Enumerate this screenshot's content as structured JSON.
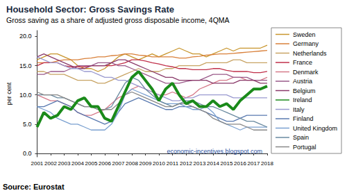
{
  "chart_data": {
    "type": "line",
    "title": "Household Sector: Gross Savings Rate",
    "subtitle": "Gross saving as a share of adjusted gross disposable income, 4QMA",
    "ylabel": "per cent",
    "source": "Source: Eurostat",
    "annotations": [
      {
        "text": "economic-incentives.blogspot.com"
      }
    ],
    "categories": [
      "2001",
      null,
      "2002",
      null,
      "2003",
      null,
      "2004",
      null,
      "2005",
      null,
      "2006",
      null,
      "2007",
      null,
      "2008",
      null,
      "2009",
      null,
      "2010",
      null,
      "2011",
      null,
      "2012",
      null,
      "2013",
      null,
      "2014",
      null,
      "2015",
      null,
      "2016",
      null,
      "2017",
      null,
      "2018"
    ],
    "ylim": [
      -0.6,
      21
    ],
    "yticks": [
      {
        "value": 0,
        "label": "0.0"
      },
      {
        "value": 5,
        "label": "5.0"
      },
      {
        "value": 10,
        "label": "10.0"
      },
      {
        "value": 15,
        "label": "15.0"
      },
      {
        "value": 20,
        "label": "20.0"
      }
    ],
    "grid": false,
    "legend": "right",
    "series": [
      {
        "name": "Sweden",
        "color": "#c8952c",
        "line_style": "solid",
        "values": [
          16,
          16.5,
          17,
          17,
          16.5,
          16,
          15,
          14.5,
          14.5,
          14,
          14.5,
          15.5,
          16.5,
          17,
          16.5,
          16,
          16.5,
          17,
          16.5,
          17,
          17.5,
          18,
          17.5,
          17,
          17,
          16.5,
          17,
          17.5,
          18,
          17.5,
          18,
          18,
          18,
          18,
          18.5
        ]
      },
      {
        "name": "Germany",
        "color": "#d9803a",
        "line_style": "solid",
        "values": [
          15.5,
          15.5,
          15.5,
          15.8,
          16,
          16,
          16,
          16.2,
          16.3,
          16.5,
          16.5,
          16.7,
          16.8,
          17,
          17,
          16.8,
          16.7,
          16.5,
          16.5,
          16.5,
          16.5,
          16.3,
          16.3,
          16.5,
          16.6,
          16.8,
          16.9,
          17,
          17,
          17.1,
          17.2,
          17.3,
          17.4,
          17.5,
          17.6
        ]
      },
      {
        "name": "Netherlands",
        "color": "#c8a464",
        "line_style": "solid",
        "values": [
          14,
          14,
          13.5,
          13.5,
          13.5,
          13,
          12.5,
          12.5,
          12.5,
          12,
          12,
          12.5,
          13,
          13.5,
          14,
          14.5,
          14,
          14,
          14,
          14.5,
          14.5,
          15,
          15,
          15,
          15,
          15.5,
          15.5,
          15.5,
          15.5,
          16,
          16,
          15.5,
          15.5,
          15.5,
          15.5
        ]
      },
      {
        "name": "France",
        "color": "#c0304a",
        "line_style": "solid",
        "values": [
          15,
          15.5,
          15.5,
          15.5,
          15,
          14.8,
          14.8,
          14.8,
          15,
          15,
          15,
          15,
          15.2,
          15.5,
          16,
          16,
          15.8,
          15.5,
          15.3,
          15,
          14.8,
          14.5,
          14.5,
          14.3,
          14.3,
          14.3,
          14.5,
          14.5,
          14.2,
          14,
          14,
          14,
          13.8,
          13.8,
          14
        ]
      },
      {
        "name": "Denmark",
        "color": "#d67a8a",
        "line_style": "solid",
        "values": [
          10,
          9.5,
          9,
          9,
          8.5,
          8,
          7,
          6.5,
          6.5,
          7,
          7.5,
          8.5,
          9.5,
          10,
          11,
          11.5,
          11,
          10.5,
          10,
          10,
          10.5,
          10,
          9.5,
          10,
          11,
          11.5,
          12,
          12.5,
          12.5,
          13,
          13,
          12.5,
          12.5,
          12.5,
          13
        ]
      },
      {
        "name": "Austria",
        "color": "#9a5a8a",
        "line_style": "solid",
        "values": [
          13.5,
          13.5,
          14,
          14,
          14,
          14.5,
          15,
          15,
          15,
          15.5,
          15.5,
          15.5,
          15,
          15,
          14.5,
          14,
          13.5,
          13,
          12.5,
          12,
          12,
          12,
          12.3,
          12.5,
          12.5,
          13,
          13.5,
          13.5,
          13.5,
          13,
          13,
          13,
          12.5,
          12.5,
          12.5
        ]
      },
      {
        "name": "Belgium",
        "color": "#8a3a6a",
        "line_style": "solid",
        "values": [
          16.5,
          17,
          16.5,
          16,
          15.5,
          15,
          14.5,
          14.5,
          15,
          15,
          15,
          15.5,
          16,
          16,
          15.5,
          15,
          14.5,
          14,
          13.5,
          13,
          13,
          12.5,
          12.5,
          12.5,
          12.5,
          12.5,
          12,
          12,
          12,
          12,
          12.5,
          12.5,
          12.5,
          12,
          12
        ]
      },
      {
        "name": "Ireland",
        "color": "#1a8a1a",
        "line_style": "bold",
        "values": [
          4.5,
          7,
          6,
          6.5,
          8,
          7.5,
          9,
          9.5,
          8,
          8,
          6,
          5.5,
          8,
          10.5,
          13,
          14,
          12.5,
          11,
          9,
          11,
          12,
          10,
          8.5,
          9,
          8,
          8,
          9,
          8,
          8.5,
          7.5,
          9,
          10,
          11,
          11,
          11.5
        ]
      },
      {
        "name": "Italy",
        "color": "#9a9ad0",
        "line_style": "solid",
        "values": [
          16.5,
          16,
          15.5,
          15.5,
          15,
          14.5,
          14.5,
          14,
          14,
          13.5,
          13,
          13,
          12.5,
          12.5,
          12,
          11.5,
          11,
          10.5,
          10,
          9.5,
          9,
          9,
          9.5,
          9.5,
          10,
          10,
          10,
          10,
          10,
          9.5,
          9.5,
          9.5,
          9.5,
          9.5,
          9.5
        ]
      },
      {
        "name": "Finland",
        "color": "#5a7ab0",
        "line_style": "solid",
        "values": [
          8,
          8,
          8.5,
          9,
          8.5,
          8,
          7,
          6.5,
          6,
          5.5,
          5,
          5.5,
          7,
          8.5,
          9,
          9.5,
          9,
          8.5,
          8,
          7.5,
          7.5,
          8,
          8,
          8,
          7.5,
          7,
          6.5,
          6,
          5.5,
          5.5,
          6,
          6.5,
          6.5,
          6.5,
          6.5
        ]
      },
      {
        "name": "United Kingdom",
        "color": "#7aa0d0",
        "line_style": "solid",
        "values": [
          8,
          7.5,
          7,
          6,
          5.5,
          5,
          5,
          4.5,
          4,
          4,
          4,
          5,
          7,
          10,
          11,
          10.5,
          10,
          9.5,
          9,
          8.5,
          8.5,
          8.5,
          8,
          7.5,
          7.5,
          8,
          7,
          5.5,
          5,
          4.5,
          4,
          4.5,
          4.5,
          4.5,
          4.5
        ]
      },
      {
        "name": "Spain",
        "color": "#6a8aa0",
        "line_style": "solid",
        "values": [
          10,
          10,
          10,
          9.5,
          9.5,
          9,
          8.5,
          8,
          8,
          7.5,
          7.5,
          8,
          10,
          12,
          13,
          12.5,
          11,
          10,
          9,
          8.5,
          8,
          8.5,
          9,
          9,
          8.5,
          8,
          8,
          7.5,
          7,
          6.5,
          6,
          5.5,
          5.5,
          5,
          4.5
        ]
      },
      {
        "name": "Portugal",
        "color": "#888888",
        "line_style": "solid",
        "values": [
          10.5,
          10,
          10,
          10,
          9.5,
          9,
          8.5,
          8,
          8,
          7.5,
          7.5,
          7.5,
          8.5,
          10,
          10.5,
          10,
          9.5,
          9,
          8.5,
          8,
          8,
          8.5,
          8.5,
          8,
          7.5,
          7,
          6,
          5.5,
          5,
          5,
          5,
          4.5,
          4,
          4,
          4
        ]
      }
    ]
  }
}
